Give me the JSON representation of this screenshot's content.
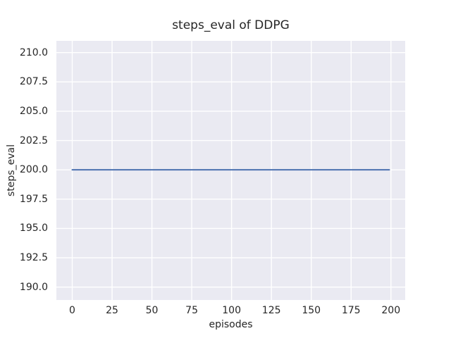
{
  "chart_data": {
    "type": "line",
    "title": "steps_eval of DDPG",
    "xlabel": "episodes",
    "ylabel": "steps_eval",
    "xlim": [
      -9.95,
      208.95
    ],
    "ylim": [
      188.9,
      211.0
    ],
    "xticks": [
      0,
      25,
      50,
      75,
      100,
      125,
      150,
      175,
      200
    ],
    "xtick_labels": [
      "0",
      "25",
      "50",
      "75",
      "100",
      "125",
      "150",
      "175",
      "200"
    ],
    "yticks": [
      190.0,
      192.5,
      195.0,
      197.5,
      200.0,
      202.5,
      205.0,
      207.5,
      210.0
    ],
    "ytick_labels": [
      "190.0",
      "192.5",
      "195.0",
      "197.5",
      "200.0",
      "202.5",
      "205.0",
      "207.5",
      "210.0"
    ],
    "grid": true,
    "legend": null,
    "series": [
      {
        "name": "steps_eval",
        "x": [
          0,
          199
        ],
        "y": [
          200.0,
          200.0
        ],
        "color": "#4c72b0"
      }
    ],
    "colors": {
      "figure_background": "#ffffff",
      "axes_background": "#eaeaf2",
      "grid": "#ffffff",
      "text": "#262626"
    }
  }
}
